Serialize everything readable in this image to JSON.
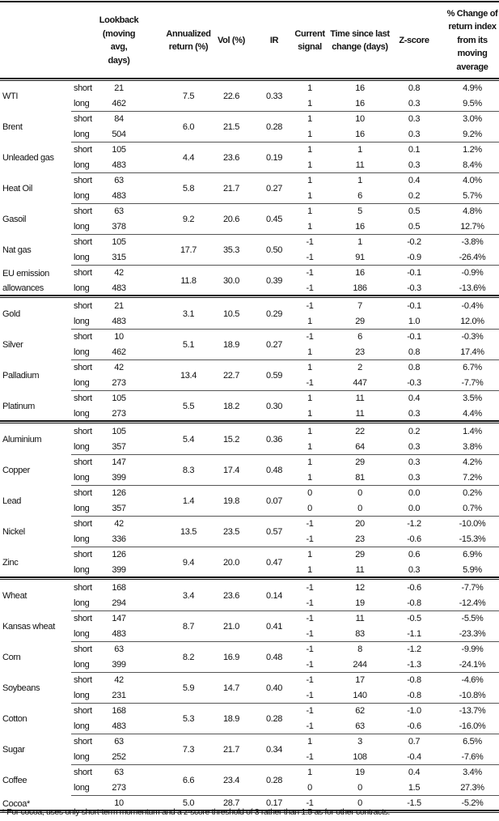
{
  "headers": {
    "lookback": "Lookback (moving avg, days)",
    "annualized": "Annualized return (%)",
    "vol": "Vol (%)",
    "ir": "IR",
    "signal": "Current signal",
    "time": "Time since last change (days)",
    "zscore": "Z-score",
    "pct": "% Change of return index from its moving average"
  },
  "groups": [
    [
      {
        "name": "WTI",
        "ann": "7.5",
        "vol": "22.6",
        "ir": "0.33",
        "rows": [
          {
            "type": "short",
            "lookback": "21",
            "signal": "1",
            "time": "16",
            "z": "0.8",
            "pct": "4.9%"
          },
          {
            "type": "long",
            "lookback": "462",
            "signal": "1",
            "time": "16",
            "z": "0.3",
            "pct": "9.5%"
          }
        ]
      },
      {
        "name": "Brent",
        "ann": "6.0",
        "vol": "21.5",
        "ir": "0.28",
        "rows": [
          {
            "type": "short",
            "lookback": "84",
            "signal": "1",
            "time": "10",
            "z": "0.3",
            "pct": "3.0%"
          },
          {
            "type": "long",
            "lookback": "504",
            "signal": "1",
            "time": "16",
            "z": "0.3",
            "pct": "9.2%"
          }
        ]
      },
      {
        "name": "Unleaded gas",
        "ann": "4.4",
        "vol": "23.6",
        "ir": "0.19",
        "rows": [
          {
            "type": "short",
            "lookback": "105",
            "signal": "1",
            "time": "1",
            "z": "0.1",
            "pct": "1.2%"
          },
          {
            "type": "long",
            "lookback": "483",
            "signal": "1",
            "time": "11",
            "z": "0.3",
            "pct": "8.4%"
          }
        ]
      },
      {
        "name": "Heat Oil",
        "ann": "5.8",
        "vol": "21.7",
        "ir": "0.27",
        "rows": [
          {
            "type": "short",
            "lookback": "63",
            "signal": "1",
            "time": "1",
            "z": "0.4",
            "pct": "4.0%"
          },
          {
            "type": "long",
            "lookback": "483",
            "signal": "1",
            "time": "6",
            "z": "0.2",
            "pct": "5.7%"
          }
        ]
      },
      {
        "name": "Gasoil",
        "ann": "9.2",
        "vol": "20.6",
        "ir": "0.45",
        "rows": [
          {
            "type": "short",
            "lookback": "63",
            "signal": "1",
            "time": "5",
            "z": "0.5",
            "pct": "4.8%"
          },
          {
            "type": "long",
            "lookback": "378",
            "signal": "1",
            "time": "16",
            "z": "0.5",
            "pct": "12.7%"
          }
        ]
      },
      {
        "name": "Nat gas",
        "ann": "17.7",
        "vol": "35.3",
        "ir": "0.50",
        "rows": [
          {
            "type": "short",
            "lookback": "105",
            "signal": "-1",
            "time": "1",
            "z": "-0.2",
            "pct": "-3.8%"
          },
          {
            "type": "long",
            "lookback": "315",
            "signal": "-1",
            "time": "91",
            "z": "-0.9",
            "pct": "-26.4%"
          }
        ]
      },
      {
        "name": "EU emission allowances",
        "ann": "11.8",
        "vol": "30.0",
        "ir": "0.39",
        "rows": [
          {
            "type": "short",
            "lookback": "42",
            "signal": "-1",
            "time": "16",
            "z": "-0.1",
            "pct": "-0.9%"
          },
          {
            "type": "long",
            "lookback": "483",
            "signal": "-1",
            "time": "186",
            "z": "-0.3",
            "pct": "-13.6%"
          }
        ]
      }
    ],
    [
      {
        "name": "Gold",
        "ann": "3.1",
        "vol": "10.5",
        "ir": "0.29",
        "rows": [
          {
            "type": "short",
            "lookback": "21",
            "signal": "-1",
            "time": "7",
            "z": "-0.1",
            "pct": "-0.4%"
          },
          {
            "type": "long",
            "lookback": "483",
            "signal": "1",
            "time": "29",
            "z": "1.0",
            "pct": "12.0%"
          }
        ]
      },
      {
        "name": "Silver",
        "ann": "5.1",
        "vol": "18.9",
        "ir": "0.27",
        "rows": [
          {
            "type": "short",
            "lookback": "10",
            "signal": "-1",
            "time": "6",
            "z": "-0.1",
            "pct": "-0.3%"
          },
          {
            "type": "long",
            "lookback": "462",
            "signal": "1",
            "time": "23",
            "z": "0.8",
            "pct": "17.4%"
          }
        ]
      },
      {
        "name": "Palladium",
        "ann": "13.4",
        "vol": "22.7",
        "ir": "0.59",
        "rows": [
          {
            "type": "short",
            "lookback": "42",
            "signal": "1",
            "time": "2",
            "z": "0.8",
            "pct": "6.7%"
          },
          {
            "type": "long",
            "lookback": "273",
            "signal": "-1",
            "time": "447",
            "z": "-0.3",
            "pct": "-7.7%"
          }
        ]
      },
      {
        "name": "Platinum",
        "ann": "5.5",
        "vol": "18.2",
        "ir": "0.30",
        "rows": [
          {
            "type": "short",
            "lookback": "105",
            "signal": "1",
            "time": "11",
            "z": "0.4",
            "pct": "3.5%"
          },
          {
            "type": "long",
            "lookback": "273",
            "signal": "1",
            "time": "11",
            "z": "0.3",
            "pct": "4.4%"
          }
        ]
      }
    ],
    [
      {
        "name": "Aluminium",
        "ann": "5.4",
        "vol": "15.2",
        "ir": "0.36",
        "rows": [
          {
            "type": "short",
            "lookback": "105",
            "signal": "1",
            "time": "22",
            "z": "0.2",
            "pct": "1.4%"
          },
          {
            "type": "long",
            "lookback": "357",
            "signal": "1",
            "time": "64",
            "z": "0.3",
            "pct": "3.8%"
          }
        ]
      },
      {
        "name": "Copper",
        "ann": "8.3",
        "vol": "17.4",
        "ir": "0.48",
        "rows": [
          {
            "type": "short",
            "lookback": "147",
            "signal": "1",
            "time": "29",
            "z": "0.3",
            "pct": "4.2%"
          },
          {
            "type": "long",
            "lookback": "399",
            "signal": "1",
            "time": "81",
            "z": "0.3",
            "pct": "7.2%"
          }
        ]
      },
      {
        "name": "Lead",
        "ann": "1.4",
        "vol": "19.8",
        "ir": "0.07",
        "rows": [
          {
            "type": "short",
            "lookback": "126",
            "signal": "0",
            "time": "0",
            "z": "0.0",
            "pct": "0.2%"
          },
          {
            "type": "long",
            "lookback": "357",
            "signal": "0",
            "time": "0",
            "z": "0.0",
            "pct": "0.7%"
          }
        ]
      },
      {
        "name": "Nickel",
        "ann": "13.5",
        "vol": "23.5",
        "ir": "0.57",
        "rows": [
          {
            "type": "short",
            "lookback": "42",
            "signal": "-1",
            "time": "20",
            "z": "-1.2",
            "pct": "-10.0%"
          },
          {
            "type": "long",
            "lookback": "336",
            "signal": "-1",
            "time": "23",
            "z": "-0.6",
            "pct": "-15.3%"
          }
        ]
      },
      {
        "name": "Zinc",
        "ann": "9.4",
        "vol": "20.0",
        "ir": "0.47",
        "rows": [
          {
            "type": "short",
            "lookback": "126",
            "signal": "1",
            "time": "29",
            "z": "0.6",
            "pct": "6.9%"
          },
          {
            "type": "long",
            "lookback": "399",
            "signal": "1",
            "time": "11",
            "z": "0.3",
            "pct": "5.9%"
          }
        ]
      }
    ],
    [
      {
        "name": "Wheat",
        "ann": "3.4",
        "vol": "23.6",
        "ir": "0.14",
        "rows": [
          {
            "type": "short",
            "lookback": "168",
            "signal": "-1",
            "time": "12",
            "z": "-0.6",
            "pct": "-7.7%"
          },
          {
            "type": "long",
            "lookback": "294",
            "signal": "-1",
            "time": "19",
            "z": "-0.8",
            "pct": "-12.4%"
          }
        ]
      },
      {
        "name": "Kansas wheat",
        "ann": "8.7",
        "vol": "21.0",
        "ir": "0.41",
        "rows": [
          {
            "type": "short",
            "lookback": "147",
            "signal": "-1",
            "time": "11",
            "z": "-0.5",
            "pct": "-5.5%"
          },
          {
            "type": "long",
            "lookback": "483",
            "signal": "-1",
            "time": "83",
            "z": "-1.1",
            "pct": "-23.3%"
          }
        ]
      },
      {
        "name": "Corn",
        "ann": "8.2",
        "vol": "16.9",
        "ir": "0.48",
        "rows": [
          {
            "type": "short",
            "lookback": "63",
            "signal": "-1",
            "time": "8",
            "z": "-1.2",
            "pct": "-9.9%"
          },
          {
            "type": "long",
            "lookback": "399",
            "signal": "-1",
            "time": "244",
            "z": "-1.3",
            "pct": "-24.1%"
          }
        ]
      },
      {
        "name": "Soybeans",
        "ann": "5.9",
        "vol": "14.7",
        "ir": "0.40",
        "rows": [
          {
            "type": "short",
            "lookback": "42",
            "signal": "-1",
            "time": "17",
            "z": "-0.8",
            "pct": "-4.6%"
          },
          {
            "type": "long",
            "lookback": "231",
            "signal": "-1",
            "time": "140",
            "z": "-0.8",
            "pct": "-10.8%"
          }
        ]
      },
      {
        "name": "Cotton",
        "ann": "5.3",
        "vol": "18.9",
        "ir": "0.28",
        "rows": [
          {
            "type": "short",
            "lookback": "168",
            "signal": "-1",
            "time": "62",
            "z": "-1.0",
            "pct": "-13.7%"
          },
          {
            "type": "long",
            "lookback": "483",
            "signal": "-1",
            "time": "63",
            "z": "-0.6",
            "pct": "-16.0%"
          }
        ]
      },
      {
        "name": "Sugar",
        "ann": "7.3",
        "vol": "21.7",
        "ir": "0.34",
        "rows": [
          {
            "type": "short",
            "lookback": "63",
            "signal": "1",
            "time": "3",
            "z": "0.7",
            "pct": "6.5%"
          },
          {
            "type": "long",
            "lookback": "252",
            "signal": "-1",
            "time": "108",
            "z": "-0.4",
            "pct": "-7.6%"
          }
        ]
      },
      {
        "name": "Coffee",
        "ann": "6.6",
        "vol": "23.4",
        "ir": "0.28",
        "rows": [
          {
            "type": "short",
            "lookback": "63",
            "signal": "1",
            "time": "19",
            "z": "0.4",
            "pct": "3.4%"
          },
          {
            "type": "long",
            "lookback": "273",
            "signal": "0",
            "time": "0",
            "z": "1.5",
            "pct": "27.3%"
          }
        ]
      },
      {
        "name": "Cocoa*",
        "ann": "5.0",
        "vol": "28.7",
        "ir": "0.17",
        "rows": [
          {
            "type": "",
            "lookback": "10",
            "signal": "-1",
            "time": "0",
            "z": "-1.5",
            "pct": "-5.2%"
          }
        ]
      }
    ]
  ],
  "footnote": "* For cocoa, uses only short-term momentum and a z-score threshold of 3 rather than 1.5 as for other contracts."
}
